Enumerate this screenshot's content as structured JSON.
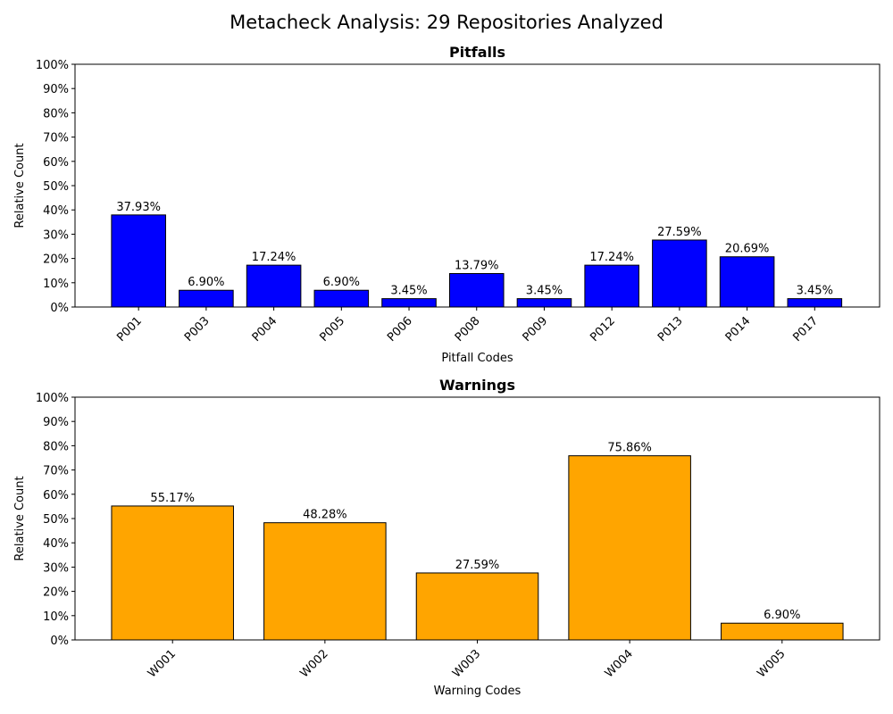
{
  "suptitle": "Metacheck Analysis: 29 Repositories Analyzed",
  "chart_data": [
    {
      "type": "bar",
      "title": "Pitfalls",
      "xlabel": "Pitfall Codes",
      "ylabel": "Relative Count",
      "ylim": [
        0,
        100
      ],
      "yticks": [
        "0%",
        "10%",
        "20%",
        "30%",
        "40%",
        "50%",
        "60%",
        "70%",
        "80%",
        "90%",
        "100%"
      ],
      "color": "#0000ff",
      "categories": [
        "P001",
        "P003",
        "P004",
        "P005",
        "P006",
        "P008",
        "P009",
        "P012",
        "P013",
        "P014",
        "P017"
      ],
      "values": [
        37.93,
        6.9,
        17.24,
        6.9,
        3.45,
        13.79,
        3.45,
        17.24,
        27.59,
        20.69,
        3.45
      ],
      "labels": [
        "37.93%",
        "6.90%",
        "17.24%",
        "6.90%",
        "3.45%",
        "13.79%",
        "3.45%",
        "17.24%",
        "27.59%",
        "20.69%",
        "3.45%"
      ]
    },
    {
      "type": "bar",
      "title": "Warnings",
      "xlabel": "Warning Codes",
      "ylabel": "Relative Count",
      "ylim": [
        0,
        100
      ],
      "yticks": [
        "0%",
        "10%",
        "20%",
        "30%",
        "40%",
        "50%",
        "60%",
        "70%",
        "80%",
        "90%",
        "100%"
      ],
      "color": "#ffa500",
      "categories": [
        "W001",
        "W002",
        "W003",
        "W004",
        "W005"
      ],
      "values": [
        55.17,
        48.28,
        27.59,
        75.86,
        6.9
      ],
      "labels": [
        "55.17%",
        "48.28%",
        "27.59%",
        "75.86%",
        "6.90%"
      ]
    }
  ]
}
